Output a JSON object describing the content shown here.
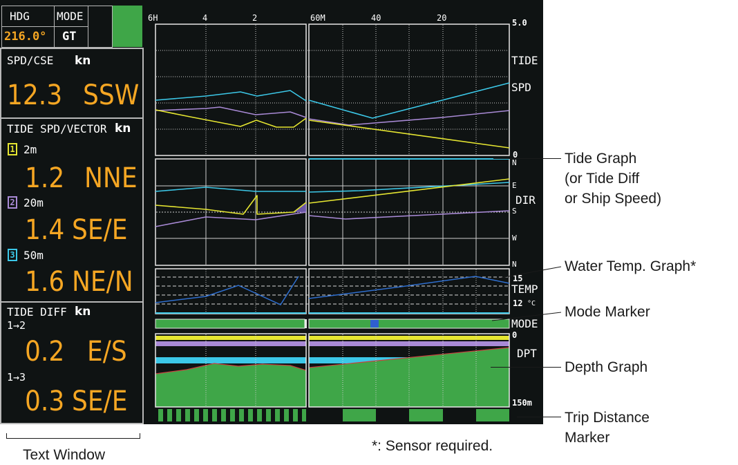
{
  "header": {
    "hdg_label": "HDG",
    "mode_label": "MODE",
    "hdg_value": "216.0°",
    "mode_value": "GT"
  },
  "text_window": {
    "spd_cse_label": "SPD/CSE",
    "spd_cse_unit": "kn",
    "spd_value": "12.3",
    "cse_value": "SSW",
    "tide_label": "TIDE SPD/VECTOR",
    "tide_unit": "kn",
    "layers": [
      {
        "badge": "1",
        "depth": "2m",
        "speed": "1.2",
        "dir": "NNE",
        "color": "#e6e631"
      },
      {
        "badge": "2",
        "depth": "20m",
        "speed": "1.4",
        "dir": "SE/E",
        "color": "#a98ad6"
      },
      {
        "badge": "3",
        "depth": "50m",
        "speed": "1.6",
        "dir": "NE/N",
        "color": "#3cc8e8"
      }
    ],
    "diff_label": "TIDE DIFF",
    "diff_unit": "kn",
    "diffs": [
      {
        "label": "1→2",
        "speed": "0.2",
        "dir": "E/S"
      },
      {
        "label": "1→3",
        "speed": "0.3",
        "dir": "SE/E"
      }
    ]
  },
  "graph": {
    "time_left": [
      "6H",
      "4",
      "2"
    ],
    "time_right": [
      "60M",
      "40",
      "20"
    ],
    "tide_scale_top": "5.0",
    "tide_scale_bottom": "0",
    "tide_label": "TIDE",
    "spd_label": "SPD",
    "dir_label": "DIR",
    "dir_ticks": [
      "N",
      "E",
      "S",
      "W",
      "N"
    ],
    "temp_top": "15",
    "temp_label": "TEMP",
    "temp_bottom": "12",
    "temp_unit": "°C",
    "mode_label": "MODE",
    "depth_top": "0",
    "depth_label": "DPT",
    "depth_bottom": "150m"
  },
  "callouts": {
    "tide_graph": "Tide Graph",
    "tide_graph_l2": "(or Tide Diff",
    "tide_graph_l3": "or Ship Speed)",
    "water_temp": "Water Temp. Graph*",
    "mode_marker": "Mode Marker",
    "depth_graph": "Depth Graph",
    "trip_distance": "Trip Distance",
    "trip_distance_l2": "Marker",
    "text_window": "Text Window",
    "sensor_note": "*: Sensor required."
  },
  "colors": {
    "layer1": "#e6e631",
    "layer2": "#a98ad6",
    "layer3": "#3cc8e8",
    "green": "#3fa648",
    "orange": "#f5a623",
    "mode_marker": "#2f5fd0"
  }
}
